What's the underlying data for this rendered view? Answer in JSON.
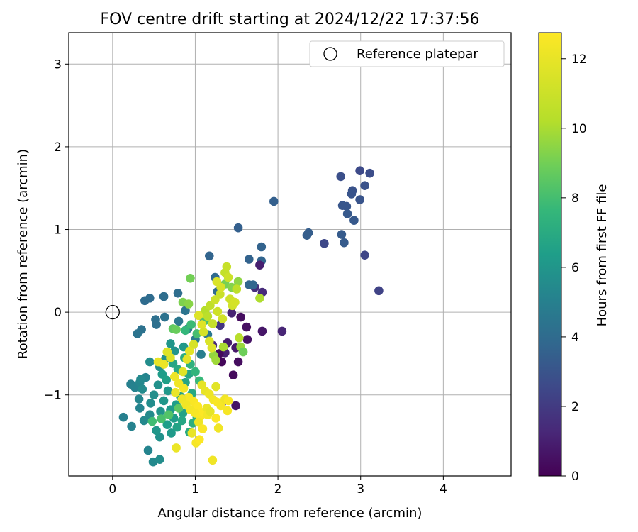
{
  "chart_data": {
    "type": "scatter",
    "title": "FOV centre drift starting at 2024/12/22 17:37:56",
    "xlabel": "Angular distance from reference (arcmin)",
    "ylabel": "Rotation from reference (arcmin)",
    "xlim": [
      -0.53,
      4.82
    ],
    "ylim": [
      -1.98,
      3.38
    ],
    "xticks": [
      0,
      1,
      2,
      3,
      4
    ],
    "yticks": [
      -1,
      0,
      1,
      2,
      3
    ],
    "xtick_labels": [
      "0",
      "1",
      "2",
      "3",
      "4"
    ],
    "ytick_labels": [
      "−1",
      "0",
      "1",
      "2",
      "3"
    ],
    "grid": true,
    "colormap": "viridis",
    "colorbar": {
      "label": "Hours from first FF file",
      "min": 0,
      "max": 12.75,
      "ticks": [
        0,
        2,
        4,
        6,
        8,
        10,
        12
      ],
      "tick_labels": [
        "0",
        "2",
        "4",
        "6",
        "8",
        "10",
        "12"
      ]
    },
    "legend": {
      "label": "Reference platepar",
      "location": "upper right"
    },
    "reference_point": {
      "x": 0,
      "y": 0
    },
    "points": [
      {
        "x": 3.22,
        "y": 0.26,
        "h": 2.3
      },
      {
        "x": 3.05,
        "y": 0.69,
        "h": 2.4
      },
      {
        "x": 2.99,
        "y": 1.71,
        "h": 2.6
      },
      {
        "x": 3.11,
        "y": 1.68,
        "h": 2.7
      },
      {
        "x": 2.76,
        "y": 1.64,
        "h": 2.8
      },
      {
        "x": 3.05,
        "y": 1.53,
        "h": 2.9
      },
      {
        "x": 2.9,
        "y": 1.47,
        "h": 2.9
      },
      {
        "x": 2.89,
        "y": 1.43,
        "h": 3.0
      },
      {
        "x": 2.99,
        "y": 1.36,
        "h": 3.0
      },
      {
        "x": 2.78,
        "y": 1.29,
        "h": 3.1
      },
      {
        "x": 2.83,
        "y": 1.28,
        "h": 3.1
      },
      {
        "x": 2.84,
        "y": 1.19,
        "h": 3.2
      },
      {
        "x": 2.92,
        "y": 1.11,
        "h": 3.2
      },
      {
        "x": 2.77,
        "y": 0.94,
        "h": 3.3
      },
      {
        "x": 2.8,
        "y": 0.84,
        "h": 3.3
      },
      {
        "x": 2.56,
        "y": 0.83,
        "h": 2.5
      },
      {
        "x": 2.37,
        "y": 0.96,
        "h": 3.4
      },
      {
        "x": 2.35,
        "y": 0.93,
        "h": 3.4
      },
      {
        "x": 1.95,
        "y": 1.34,
        "h": 3.5
      },
      {
        "x": 1.52,
        "y": 1.02,
        "h": 3.5
      },
      {
        "x": 1.8,
        "y": 0.79,
        "h": 3.6
      },
      {
        "x": 1.65,
        "y": 0.64,
        "h": 3.6
      },
      {
        "x": 1.8,
        "y": 0.62,
        "h": 3.7
      },
      {
        "x": 1.17,
        "y": 0.68,
        "h": 3.7
      },
      {
        "x": 1.78,
        "y": 0.57,
        "h": 1.0
      },
      {
        "x": 2.05,
        "y": -0.23,
        "h": 1.2
      },
      {
        "x": 1.81,
        "y": 0.24,
        "h": 1.4
      },
      {
        "x": 1.72,
        "y": 0.3,
        "h": 1.5
      },
      {
        "x": 1.65,
        "y": 0.33,
        "h": 3.8
      },
      {
        "x": 1.7,
        "y": 0.33,
        "h": 3.8
      },
      {
        "x": 1.24,
        "y": 0.42,
        "h": 3.9
      },
      {
        "x": 1.27,
        "y": 0.25,
        "h": 3.9
      },
      {
        "x": 0.45,
        "y": 0.17,
        "h": 4.0
      },
      {
        "x": 0.39,
        "y": 0.14,
        "h": 4.0
      },
      {
        "x": 0.79,
        "y": 0.23,
        "h": 4.1
      },
      {
        "x": 0.62,
        "y": 0.19,
        "h": 4.1
      },
      {
        "x": 0.52,
        "y": -0.09,
        "h": 4.2
      },
      {
        "x": 0.53,
        "y": -0.15,
        "h": 4.2
      },
      {
        "x": 0.63,
        "y": -0.06,
        "h": 4.3
      },
      {
        "x": 0.35,
        "y": -0.21,
        "h": 4.3
      },
      {
        "x": 0.3,
        "y": -0.26,
        "h": 4.4
      },
      {
        "x": 0.88,
        "y": 0.02,
        "h": 4.4
      },
      {
        "x": 0.8,
        "y": -0.11,
        "h": 4.5
      },
      {
        "x": 0.91,
        "y": -0.2,
        "h": 4.5
      },
      {
        "x": 1.55,
        "y": -0.06,
        "h": 0.4
      },
      {
        "x": 1.62,
        "y": -0.18,
        "h": 0.5
      },
      {
        "x": 1.63,
        "y": -0.33,
        "h": 0.6
      },
      {
        "x": 1.81,
        "y": -0.23,
        "h": 0.7
      },
      {
        "x": 1.49,
        "y": -0.43,
        "h": 0.8
      },
      {
        "x": 1.39,
        "y": -0.37,
        "h": 0.9
      },
      {
        "x": 1.36,
        "y": -0.49,
        "h": 1.0
      },
      {
        "x": 1.44,
        "y": -0.01,
        "h": 1.1
      },
      {
        "x": 1.29,
        "y": -0.5,
        "h": 0.3
      },
      {
        "x": 1.32,
        "y": -0.6,
        "h": 0.2
      },
      {
        "x": 1.52,
        "y": -0.6,
        "h": 0.4
      },
      {
        "x": 1.46,
        "y": -0.76,
        "h": 0.3
      },
      {
        "x": 1.49,
        "y": -1.13,
        "h": 0.6
      },
      {
        "x": 1.32,
        "y": -1.1,
        "h": 1.5
      },
      {
        "x": 1.21,
        "y": -0.4,
        "h": 1.3
      },
      {
        "x": 1.3,
        "y": -0.16,
        "h": 1.8
      },
      {
        "x": 1.15,
        "y": -0.27,
        "h": 4.6
      },
      {
        "x": 1.08,
        "y": -0.05,
        "h": 4.7
      },
      {
        "x": 1.0,
        "y": -0.33,
        "h": 4.8
      },
      {
        "x": 1.07,
        "y": -0.51,
        "h": 4.9
      },
      {
        "x": 0.22,
        "y": -0.87,
        "h": 5.0
      },
      {
        "x": 0.27,
        "y": -0.91,
        "h": 5.1
      },
      {
        "x": 0.4,
        "y": -0.79,
        "h": 5.2
      },
      {
        "x": 0.33,
        "y": -0.85,
        "h": 5.3
      },
      {
        "x": 0.34,
        "y": -0.81,
        "h": 5.4
      },
      {
        "x": 0.36,
        "y": -0.93,
        "h": 5.5
      },
      {
        "x": 0.45,
        "y": -0.6,
        "h": 5.6
      },
      {
        "x": 0.57,
        "y": -0.66,
        "h": 5.7
      },
      {
        "x": 0.64,
        "y": -0.56,
        "h": 5.8
      },
      {
        "x": 0.75,
        "y": -0.47,
        "h": 5.9
      },
      {
        "x": 0.7,
        "y": -0.38,
        "h": 6.0
      },
      {
        "x": 0.86,
        "y": -0.42,
        "h": 6.1
      },
      {
        "x": 0.13,
        "y": -1.27,
        "h": 5.0
      },
      {
        "x": 0.23,
        "y": -1.38,
        "h": 5.1
      },
      {
        "x": 0.33,
        "y": -1.16,
        "h": 5.2
      },
      {
        "x": 0.32,
        "y": -1.05,
        "h": 5.3
      },
      {
        "x": 0.38,
        "y": -1.31,
        "h": 5.4
      },
      {
        "x": 0.45,
        "y": -1.24,
        "h": 5.5
      },
      {
        "x": 0.46,
        "y": -1.1,
        "h": 5.6
      },
      {
        "x": 0.5,
        "y": -1.0,
        "h": 5.7
      },
      {
        "x": 0.55,
        "y": -0.88,
        "h": 5.8
      },
      {
        "x": 0.58,
        "y": -1.2,
        "h": 5.9
      },
      {
        "x": 0.62,
        "y": -1.07,
        "h": 6.0
      },
      {
        "x": 0.67,
        "y": -0.95,
        "h": 6.1
      },
      {
        "x": 0.7,
        "y": -1.18,
        "h": 6.2
      },
      {
        "x": 0.74,
        "y": -1.28,
        "h": 6.3
      },
      {
        "x": 0.77,
        "y": -1.12,
        "h": 6.4
      },
      {
        "x": 0.82,
        "y": -1.02,
        "h": 6.5
      },
      {
        "x": 0.85,
        "y": -1.22,
        "h": 6.6
      },
      {
        "x": 0.88,
        "y": -0.85,
        "h": 6.7
      },
      {
        "x": 0.92,
        "y": -0.75,
        "h": 6.8
      },
      {
        "x": 0.96,
        "y": -0.98,
        "h": 6.9
      },
      {
        "x": 0.43,
        "y": -1.67,
        "h": 5.2
      },
      {
        "x": 0.49,
        "y": -1.81,
        "h": 5.4
      },
      {
        "x": 0.57,
        "y": -1.78,
        "h": 5.6
      },
      {
        "x": 0.57,
        "y": -1.51,
        "h": 5.8
      },
      {
        "x": 0.53,
        "y": -1.43,
        "h": 6.0
      },
      {
        "x": 0.71,
        "y": -1.46,
        "h": 6.2
      },
      {
        "x": 0.66,
        "y": -1.36,
        "h": 6.4
      },
      {
        "x": 0.78,
        "y": -1.39,
        "h": 6.6
      },
      {
        "x": 0.84,
        "y": -1.31,
        "h": 6.8
      },
      {
        "x": 0.93,
        "y": -1.45,
        "h": 7.0
      },
      {
        "x": 0.97,
        "y": -1.34,
        "h": 7.2
      },
      {
        "x": 1.02,
        "y": -1.27,
        "h": 7.4
      },
      {
        "x": 0.6,
        "y": -0.75,
        "h": 6.3
      },
      {
        "x": 0.65,
        "y": -0.82,
        "h": 6.5
      },
      {
        "x": 0.73,
        "y": -0.62,
        "h": 6.7
      },
      {
        "x": 0.79,
        "y": -0.69,
        "h": 6.9
      },
      {
        "x": 0.87,
        "y": -0.55,
        "h": 7.1
      },
      {
        "x": 0.94,
        "y": -0.63,
        "h": 7.3
      },
      {
        "x": 1.0,
        "y": -0.72,
        "h": 7.5
      },
      {
        "x": 1.05,
        "y": -0.83,
        "h": 7.7
      },
      {
        "x": 0.48,
        "y": -1.32,
        "h": 7.9
      },
      {
        "x": 0.59,
        "y": -1.29,
        "h": 8.1
      },
      {
        "x": 0.68,
        "y": -1.24,
        "h": 8.3
      },
      {
        "x": 0.8,
        "y": -1.16,
        "h": 8.5
      },
      {
        "x": 0.88,
        "y": -0.22,
        "h": 7.6
      },
      {
        "x": 0.95,
        "y": -0.15,
        "h": 7.8
      },
      {
        "x": 1.02,
        "y": -0.26,
        "h": 8.0
      },
      {
        "x": 1.12,
        "y": -0.1,
        "h": 8.2
      },
      {
        "x": 0.73,
        "y": -0.2,
        "h": 8.6
      },
      {
        "x": 0.77,
        "y": -0.21,
        "h": 8.8
      },
      {
        "x": 0.94,
        "y": 0.41,
        "h": 9.0
      },
      {
        "x": 0.85,
        "y": 0.12,
        "h": 9.2
      },
      {
        "x": 0.92,
        "y": 0.1,
        "h": 9.4
      },
      {
        "x": 1.22,
        "y": -0.52,
        "h": 9.6
      },
      {
        "x": 1.25,
        "y": -0.58,
        "h": 9.8
      },
      {
        "x": 1.34,
        "y": -0.42,
        "h": 10.0
      },
      {
        "x": 1.36,
        "y": 0.34,
        "h": 9.1
      },
      {
        "x": 1.44,
        "y": 0.3,
        "h": 9.3
      },
      {
        "x": 1.52,
        "y": 0.37,
        "h": 9.5
      },
      {
        "x": 1.55,
        "y": -0.42,
        "h": 9.7
      },
      {
        "x": 1.58,
        "y": -0.48,
        "h": 8.9
      },
      {
        "x": 1.78,
        "y": 0.17,
        "h": 10.1
      },
      {
        "x": 1.53,
        "y": -0.31,
        "h": 10.3
      },
      {
        "x": 1.5,
        "y": 0.28,
        "h": 10.5
      },
      {
        "x": 1.12,
        "y": 0.02,
        "h": 10.2
      },
      {
        "x": 1.15,
        "y": -0.05,
        "h": 10.4
      },
      {
        "x": 1.18,
        "y": 0.08,
        "h": 10.6
      },
      {
        "x": 1.21,
        "y": -0.14,
        "h": 10.8
      },
      {
        "x": 1.24,
        "y": 0.15,
        "h": 11.0
      },
      {
        "x": 1.27,
        "y": 0.01,
        "h": 11.1
      },
      {
        "x": 1.3,
        "y": 0.22,
        "h": 10.9
      },
      {
        "x": 1.33,
        "y": -0.08,
        "h": 11.2
      },
      {
        "x": 1.36,
        "y": 0.48,
        "h": 10.7
      },
      {
        "x": 1.38,
        "y": 0.55,
        "h": 10.8
      },
      {
        "x": 1.4,
        "y": 0.42,
        "h": 11.0
      },
      {
        "x": 1.42,
        "y": 0.16,
        "h": 11.1
      },
      {
        "x": 1.45,
        "y": 0.08,
        "h": 11.2
      },
      {
        "x": 1.48,
        "y": 0.12,
        "h": 11.3
      },
      {
        "x": 1.31,
        "y": 0.3,
        "h": 11.4
      },
      {
        "x": 1.26,
        "y": 0.37,
        "h": 11.5
      },
      {
        "x": 1.04,
        "y": -0.04,
        "h": 11.6
      },
      {
        "x": 1.08,
        "y": -0.15,
        "h": 11.7
      },
      {
        "x": 1.1,
        "y": -0.24,
        "h": 11.3
      },
      {
        "x": 0.98,
        "y": -0.39,
        "h": 11.4
      },
      {
        "x": 0.93,
        "y": -0.47,
        "h": 11.8
      },
      {
        "x": 0.9,
        "y": -0.57,
        "h": 11.9
      },
      {
        "x": 1.17,
        "y": -0.35,
        "h": 11.5
      },
      {
        "x": 1.2,
        "y": -0.43,
        "h": 11.6
      },
      {
        "x": 0.55,
        "y": -0.6,
        "h": 12.0
      },
      {
        "x": 0.62,
        "y": -0.63,
        "h": 12.1
      },
      {
        "x": 0.75,
        "y": -0.78,
        "h": 12.2
      },
      {
        "x": 0.8,
        "y": -0.86,
        "h": 12.3
      },
      {
        "x": 0.86,
        "y": -0.92,
        "h": 12.4
      },
      {
        "x": 0.92,
        "y": -1.03,
        "h": 12.5
      },
      {
        "x": 0.98,
        "y": -1.08,
        "h": 12.6
      },
      {
        "x": 1.03,
        "y": -1.14,
        "h": 12.7
      },
      {
        "x": 0.76,
        "y": -0.97,
        "h": 12.1
      },
      {
        "x": 0.84,
        "y": -1.05,
        "h": 12.2
      },
      {
        "x": 0.89,
        "y": -1.12,
        "h": 12.3
      },
      {
        "x": 0.94,
        "y": -1.18,
        "h": 12.4
      },
      {
        "x": 1.0,
        "y": -1.22,
        "h": 12.5
      },
      {
        "x": 1.06,
        "y": -1.26,
        "h": 12.6
      },
      {
        "x": 1.1,
        "y": -1.21,
        "h": 12.7
      },
      {
        "x": 1.14,
        "y": -1.16,
        "h": 12.1
      },
      {
        "x": 1.08,
        "y": -0.88,
        "h": 11.9
      },
      {
        "x": 1.12,
        "y": -0.95,
        "h": 12.0
      },
      {
        "x": 1.17,
        "y": -0.99,
        "h": 12.2
      },
      {
        "x": 1.22,
        "y": -1.06,
        "h": 12.4
      },
      {
        "x": 1.27,
        "y": -1.09,
        "h": 12.6
      },
      {
        "x": 1.31,
        "y": -1.13,
        "h": 12.5
      },
      {
        "x": 1.36,
        "y": -1.05,
        "h": 12.3
      },
      {
        "x": 1.25,
        "y": -1.28,
        "h": 12.7
      },
      {
        "x": 1.15,
        "y": -1.24,
        "h": 12.4
      },
      {
        "x": 1.04,
        "y": -1.33,
        "h": 12.2
      },
      {
        "x": 1.09,
        "y": -1.41,
        "h": 12.6
      },
      {
        "x": 0.96,
        "y": -1.46,
        "h": 12.0
      },
      {
        "x": 1.01,
        "y": -1.58,
        "h": 12.5
      },
      {
        "x": 1.05,
        "y": -1.54,
        "h": 12.7
      },
      {
        "x": 1.28,
        "y": -1.4,
        "h": 12.3
      },
      {
        "x": 1.18,
        "y": -1.2,
        "h": 11.9
      },
      {
        "x": 0.77,
        "y": -1.64,
        "h": 12.1
      },
      {
        "x": 1.21,
        "y": -1.79,
        "h": 12.3
      },
      {
        "x": 1.4,
        "y": -1.07,
        "h": 12.6
      },
      {
        "x": 1.39,
        "y": -1.19,
        "h": 12.5
      },
      {
        "x": 1.25,
        "y": -0.9,
        "h": 11.8
      },
      {
        "x": 0.85,
        "y": -0.72,
        "h": 11.7
      },
      {
        "x": 0.7,
        "y": -0.55,
        "h": 11.5
      },
      {
        "x": 0.66,
        "y": -0.48,
        "h": 11.6
      }
    ]
  }
}
